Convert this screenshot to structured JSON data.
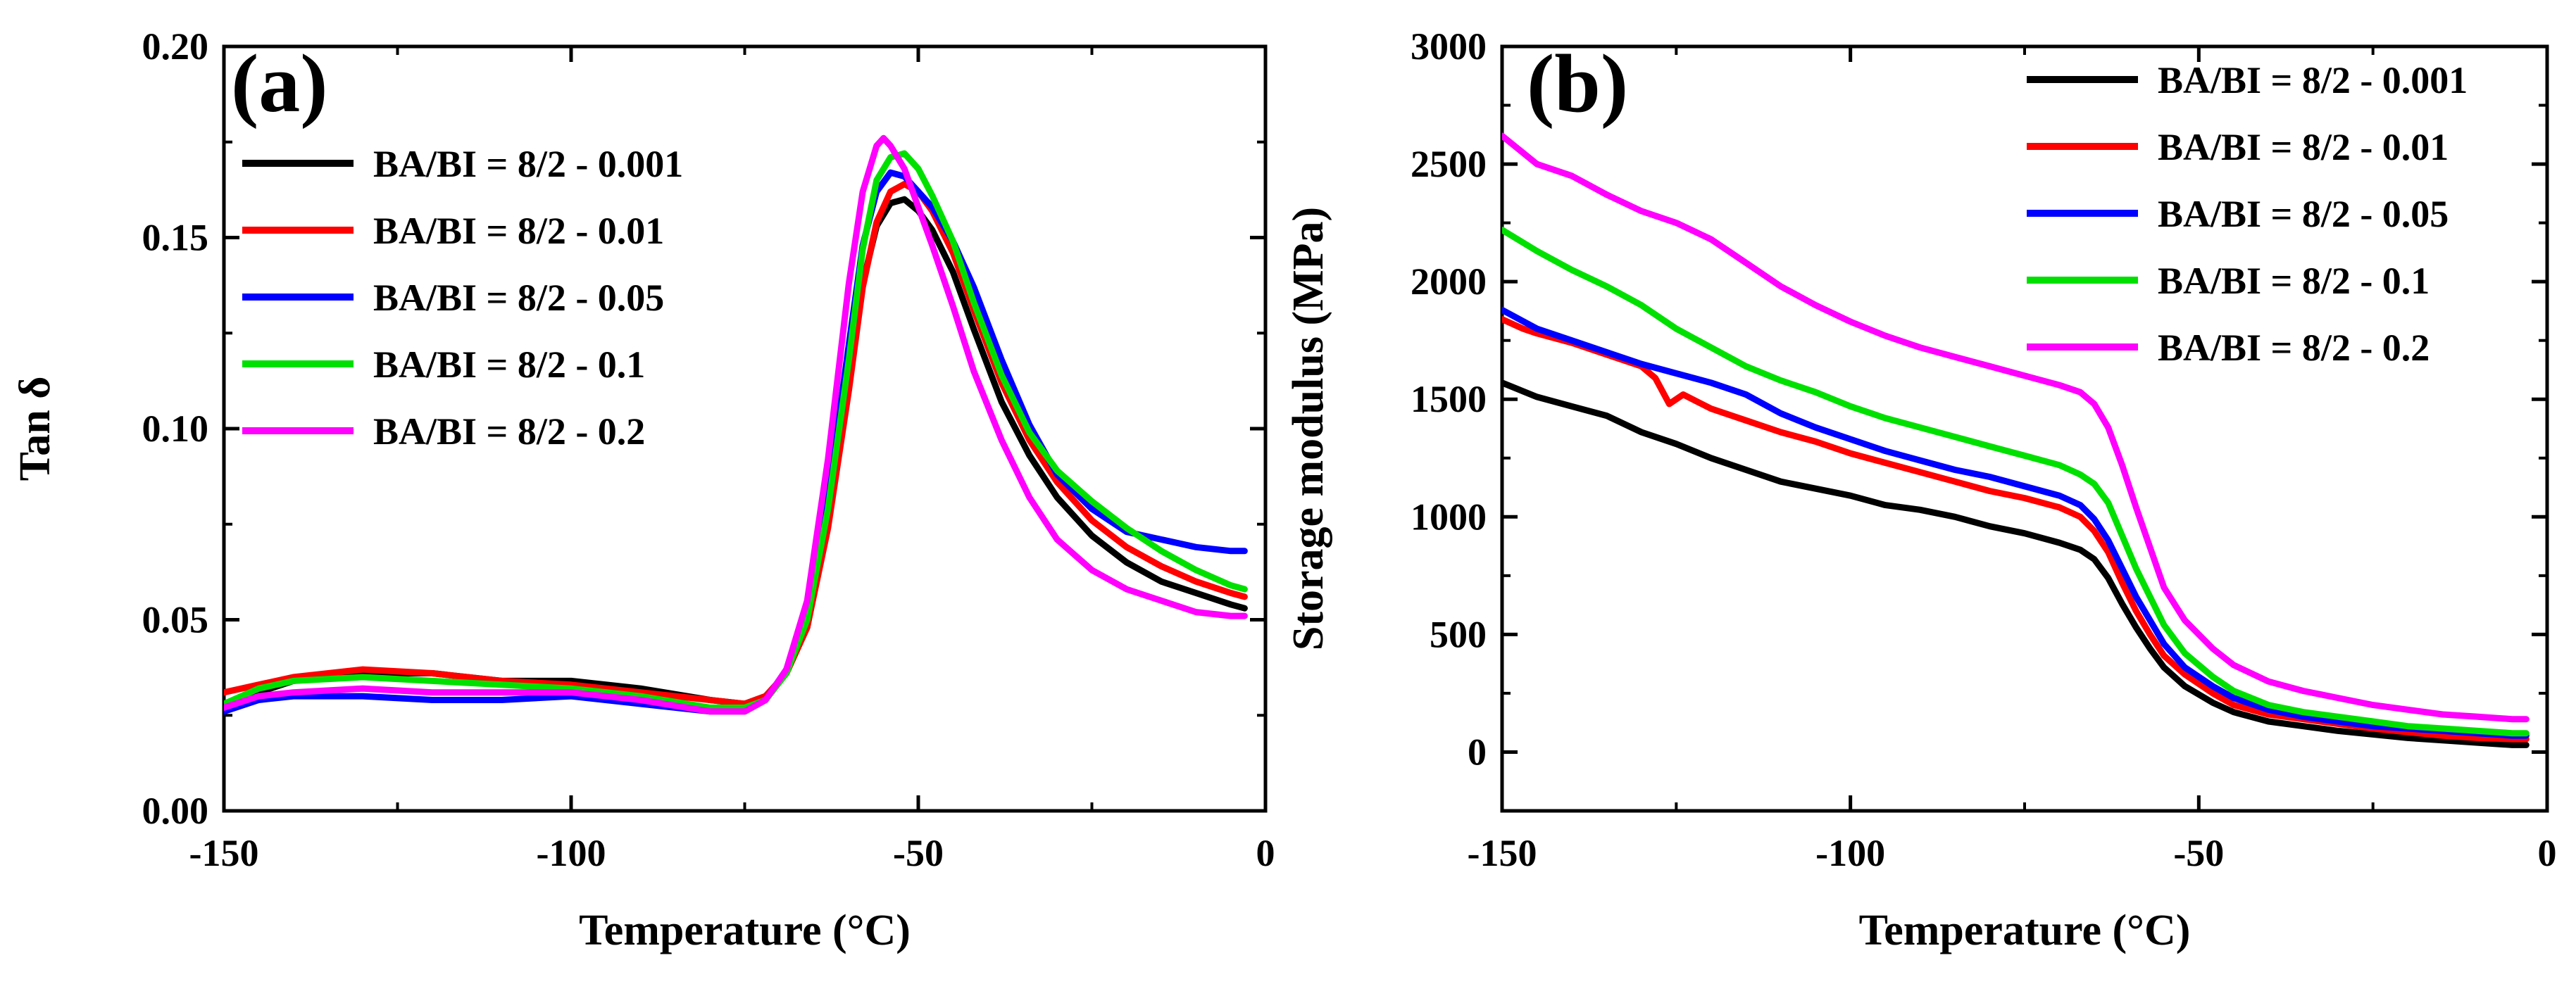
{
  "chart_data": [
    {
      "type": "line",
      "panel_label": "(a)",
      "xlabel": "Temperature (°C)",
      "ylabel": "Tan δ",
      "xlim": [
        -150,
        0
      ],
      "ylim": [
        0,
        0.2
      ],
      "xticks": [
        -150,
        -100,
        -50,
        0
      ],
      "xtick_labels": [
        "-150",
        "-100",
        "-50",
        "0"
      ],
      "yticks": [
        0,
        0.05,
        0.1,
        0.15,
        0.2
      ],
      "ytick_labels": [
        "0.00",
        "0.05",
        "0.10",
        "0.15",
        "0.20"
      ],
      "legend_position": "upper-left",
      "grid": false,
      "series": [
        {
          "name": "BA/BI = 8/2 - 0.001",
          "color": "#000000",
          "x": [
            -150,
            -145,
            -140,
            -130,
            -120,
            -110,
            -100,
            -90,
            -80,
            -75,
            -72,
            -69,
            -66,
            -63,
            -60,
            -58,
            -56,
            -54,
            -52,
            -50,
            -48,
            -45,
            -42,
            -38,
            -34,
            -30,
            -25,
            -20,
            -15,
            -10,
            -5,
            -3
          ],
          "y": [
            0.026,
            0.031,
            0.034,
            0.036,
            0.036,
            0.034,
            0.034,
            0.032,
            0.029,
            0.028,
            0.03,
            0.036,
            0.048,
            0.075,
            0.112,
            0.138,
            0.153,
            0.159,
            0.16,
            0.157,
            0.152,
            0.141,
            0.126,
            0.107,
            0.093,
            0.082,
            0.072,
            0.065,
            0.06,
            0.057,
            0.054,
            0.053
          ]
        },
        {
          "name": "BA/BI = 8/2 - 0.01",
          "color": "#ff0000",
          "x": [
            -150,
            -145,
            -140,
            -130,
            -120,
            -110,
            -100,
            -90,
            -80,
            -75,
            -72,
            -69,
            -66,
            -63,
            -60,
            -58,
            -56,
            -54,
            -52,
            -50,
            -48,
            -45,
            -42,
            -38,
            -34,
            -30,
            -25,
            -20,
            -15,
            -10,
            -5,
            -3
          ],
          "y": [
            0.031,
            0.033,
            0.035,
            0.037,
            0.036,
            0.034,
            0.033,
            0.031,
            0.029,
            0.028,
            0.03,
            0.036,
            0.048,
            0.074,
            0.11,
            0.137,
            0.154,
            0.162,
            0.164,
            0.162,
            0.157,
            0.146,
            0.131,
            0.112,
            0.097,
            0.086,
            0.076,
            0.069,
            0.064,
            0.06,
            0.057,
            0.056
          ]
        },
        {
          "name": "BA/BI = 8/2 - 0.05",
          "color": "#0000ff",
          "x": [
            -150,
            -145,
            -140,
            -130,
            -120,
            -110,
            -100,
            -90,
            -80,
            -75,
            -72,
            -69,
            -66,
            -63,
            -60,
            -58,
            -56,
            -54,
            -52,
            -50,
            -48,
            -45,
            -42,
            -38,
            -34,
            -30,
            -25,
            -20,
            -15,
            -10,
            -5,
            -3
          ],
          "y": [
            0.026,
            0.029,
            0.03,
            0.03,
            0.029,
            0.029,
            0.03,
            0.028,
            0.026,
            0.026,
            0.029,
            0.037,
            0.052,
            0.082,
            0.122,
            0.148,
            0.162,
            0.167,
            0.166,
            0.162,
            0.158,
            0.149,
            0.137,
            0.118,
            0.101,
            0.088,
            0.079,
            0.073,
            0.071,
            0.069,
            0.068,
            0.068
          ]
        },
        {
          "name": "BA/BI = 8/2 - 0.1",
          "color": "#00e000",
          "x": [
            -150,
            -145,
            -140,
            -130,
            -120,
            -110,
            -100,
            -90,
            -80,
            -75,
            -72,
            -69,
            -66,
            -63,
            -60,
            -58,
            -56,
            -54,
            -52,
            -50,
            -48,
            -45,
            -42,
            -38,
            -34,
            -30,
            -25,
            -20,
            -15,
            -10,
            -5,
            -3
          ],
          "y": [
            0.028,
            0.032,
            0.034,
            0.035,
            0.034,
            0.033,
            0.032,
            0.03,
            0.027,
            0.027,
            0.029,
            0.036,
            0.05,
            0.079,
            0.118,
            0.147,
            0.165,
            0.171,
            0.172,
            0.168,
            0.161,
            0.149,
            0.133,
            0.114,
            0.099,
            0.089,
            0.081,
            0.074,
            0.068,
            0.063,
            0.059,
            0.058
          ]
        },
        {
          "name": "BA/BI = 8/2 - 0.2",
          "color": "#ff00ff",
          "x": [
            -150,
            -145,
            -140,
            -130,
            -120,
            -110,
            -100,
            -90,
            -80,
            -75,
            -72,
            -69,
            -66,
            -63,
            -60,
            -58,
            -56,
            -55,
            -54,
            -52,
            -50,
            -48,
            -45,
            -42,
            -38,
            -34,
            -30,
            -25,
            -20,
            -15,
            -10,
            -5,
            -3
          ],
          "y": [
            0.027,
            0.03,
            0.031,
            0.032,
            0.031,
            0.031,
            0.031,
            0.029,
            0.026,
            0.026,
            0.029,
            0.037,
            0.055,
            0.092,
            0.138,
            0.162,
            0.174,
            0.176,
            0.174,
            0.168,
            0.158,
            0.148,
            0.132,
            0.115,
            0.097,
            0.082,
            0.071,
            0.063,
            0.058,
            0.055,
            0.052,
            0.051,
            0.051
          ]
        }
      ]
    },
    {
      "type": "line",
      "panel_label": "(b)",
      "xlabel": "Temperature (°C)",
      "ylabel": "Storage modulus (MPa)",
      "xlim": [
        -150,
        0
      ],
      "ylim": [
        -250,
        3000
      ],
      "xticks": [
        -150,
        -100,
        -50,
        0
      ],
      "xtick_labels": [
        "-150",
        "-100",
        "-50",
        "0"
      ],
      "yticks": [
        0,
        500,
        1000,
        1500,
        2000,
        2500,
        3000
      ],
      "ytick_labels": [
        "0",
        "500",
        "1000",
        "1500",
        "2000",
        "2500",
        "3000"
      ],
      "legend_position": "upper-right",
      "grid": false,
      "series": [
        {
          "name": "BA/BI = 8/2 - 0.001",
          "color": "#000000",
          "x": [
            -150,
            -145,
            -140,
            -135,
            -130,
            -125,
            -120,
            -115,
            -110,
            -105,
            -100,
            -95,
            -90,
            -85,
            -80,
            -75,
            -70,
            -67,
            -65,
            -63,
            -61,
            -59,
            -57,
            -55,
            -52,
            -48,
            -45,
            -40,
            -35,
            -30,
            -25,
            -20,
            -15,
            -10,
            -5,
            -3
          ],
          "y": [
            1570,
            1510,
            1470,
            1430,
            1360,
            1310,
            1250,
            1200,
            1150,
            1120,
            1090,
            1050,
            1030,
            1000,
            960,
            930,
            890,
            860,
            820,
            740,
            630,
            530,
            440,
            360,
            280,
            210,
            170,
            130,
            110,
            90,
            75,
            60,
            50,
            40,
            30,
            30
          ]
        },
        {
          "name": "BA/BI = 8/2 - 0.01",
          "color": "#ff0000",
          "x": [
            -150,
            -147,
            -145,
            -140,
            -135,
            -130,
            -128,
            -126,
            -124,
            -122,
            -120,
            -115,
            -110,
            -105,
            -100,
            -95,
            -90,
            -85,
            -80,
            -75,
            -70,
            -67,
            -65,
            -63,
            -61,
            -59,
            -57,
            -55,
            -52,
            -48,
            -45,
            -40,
            -35,
            -30,
            -25,
            -20,
            -15,
            -10,
            -5,
            -3
          ],
          "y": [
            1840,
            1800,
            1780,
            1740,
            1690,
            1640,
            1590,
            1480,
            1520,
            1490,
            1460,
            1410,
            1360,
            1320,
            1270,
            1230,
            1190,
            1150,
            1110,
            1080,
            1040,
            1000,
            940,
            850,
            720,
            600,
            500,
            410,
            330,
            250,
            200,
            160,
            140,
            120,
            100,
            85,
            70,
            60,
            55,
            55
          ]
        },
        {
          "name": "BA/BI = 8/2 - 0.05",
          "color": "#0000ff",
          "x": [
            -150,
            -145,
            -140,
            -135,
            -130,
            -125,
            -120,
            -115,
            -110,
            -105,
            -100,
            -95,
            -90,
            -85,
            -80,
            -75,
            -70,
            -67,
            -65,
            -63,
            -61,
            -59,
            -57,
            -55,
            -52,
            -48,
            -45,
            -40,
            -35,
            -30,
            -25,
            -20,
            -15,
            -10,
            -5,
            -3
          ],
          "y": [
            1880,
            1800,
            1750,
            1700,
            1650,
            1610,
            1570,
            1520,
            1440,
            1380,
            1330,
            1280,
            1240,
            1200,
            1170,
            1130,
            1090,
            1050,
            990,
            900,
            780,
            660,
            560,
            460,
            360,
            280,
            230,
            180,
            150,
            130,
            110,
            100,
            90,
            80,
            70,
            70
          ]
        },
        {
          "name": "BA/BI = 8/2 - 0.1",
          "color": "#00e000",
          "x": [
            -150,
            -145,
            -140,
            -135,
            -130,
            -125,
            -120,
            -115,
            -110,
            -105,
            -100,
            -95,
            -90,
            -85,
            -80,
            -75,
            -70,
            -67,
            -65,
            -63,
            -61,
            -59,
            -57,
            -55,
            -52,
            -48,
            -45,
            -40,
            -35,
            -30,
            -25,
            -20,
            -15,
            -10,
            -5,
            -3
          ],
          "y": [
            2220,
            2130,
            2050,
            1980,
            1900,
            1800,
            1720,
            1640,
            1580,
            1530,
            1470,
            1420,
            1380,
            1340,
            1300,
            1260,
            1220,
            1180,
            1140,
            1060,
            920,
            780,
            660,
            540,
            420,
            320,
            260,
            200,
            170,
            150,
            130,
            110,
            100,
            90,
            80,
            80
          ]
        },
        {
          "name": "BA/BI = 8/2 - 0.2",
          "color": "#ff00ff",
          "x": [
            -150,
            -145,
            -140,
            -135,
            -130,
            -125,
            -120,
            -115,
            -110,
            -105,
            -100,
            -95,
            -90,
            -85,
            -80,
            -75,
            -70,
            -67,
            -65,
            -63,
            -61,
            -59,
            -57,
            -55,
            -52,
            -48,
            -45,
            -40,
            -35,
            -30,
            -25,
            -20,
            -15,
            -10,
            -5,
            -3
          ],
          "y": [
            2620,
            2500,
            2450,
            2370,
            2300,
            2250,
            2180,
            2080,
            1980,
            1900,
            1830,
            1770,
            1720,
            1680,
            1640,
            1600,
            1560,
            1530,
            1480,
            1380,
            1220,
            1040,
            870,
            700,
            560,
            440,
            370,
            300,
            260,
            230,
            200,
            180,
            160,
            150,
            140,
            140
          ]
        }
      ]
    }
  ]
}
